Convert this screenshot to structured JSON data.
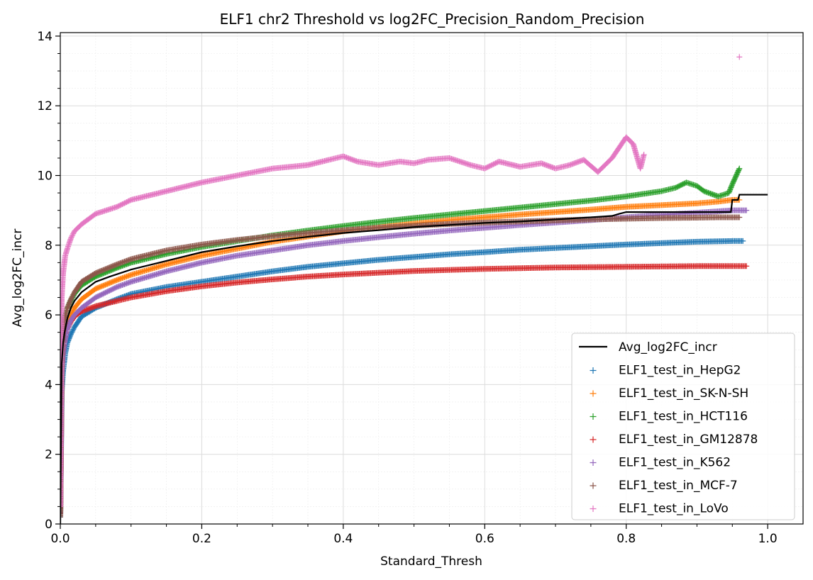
{
  "chart_data": {
    "type": "scatter",
    "title": "ELF1 chr2 Threshold vs log2FC_Precision_Random_Precision",
    "xlabel": "Standard_Thresh",
    "ylabel": "Avg_log2FC_incr",
    "xlim": [
      0,
      1.05
    ],
    "ylim": [
      0,
      14.1
    ],
    "xticks": [
      "0.0",
      "0.2",
      "0.4",
      "0.6",
      "0.8",
      "1.0"
    ],
    "yticks": [
      "0",
      "2",
      "4",
      "6",
      "8",
      "10",
      "12",
      "14"
    ],
    "grid": "major and minor",
    "legend_position": "lower right",
    "series": [
      {
        "name": "Avg_log2FC_incr",
        "kind": "line",
        "color": "#000000",
        "x": [
          0.0,
          0.002,
          0.004,
          0.006,
          0.01,
          0.015,
          0.02,
          0.03,
          0.04,
          0.05,
          0.07,
          0.1,
          0.15,
          0.2,
          0.25,
          0.3,
          0.35,
          0.4,
          0.45,
          0.5,
          0.55,
          0.6,
          0.65,
          0.7,
          0.75,
          0.78,
          0.79,
          0.8,
          0.85,
          0.9,
          0.948,
          0.95,
          0.958,
          0.96,
          1.0
        ],
        "y": [
          0.0,
          4.6,
          5.2,
          5.5,
          5.9,
          6.2,
          6.4,
          6.65,
          6.8,
          6.95,
          7.1,
          7.3,
          7.55,
          7.8,
          7.97,
          8.12,
          8.24,
          8.35,
          8.43,
          8.52,
          8.58,
          8.64,
          8.68,
          8.74,
          8.8,
          8.84,
          8.9,
          8.95,
          8.95,
          8.95,
          8.95,
          9.3,
          9.3,
          9.45,
          9.45
        ]
      },
      {
        "name": "ELF1_test_in_HepG2",
        "kind": "scatter",
        "marker": "+",
        "color": "#1f77b4",
        "x": [
          0.0,
          0.002,
          0.004,
          0.007,
          0.01,
          0.015,
          0.02,
          0.03,
          0.05,
          0.08,
          0.1,
          0.15,
          0.2,
          0.25,
          0.3,
          0.35,
          0.4,
          0.45,
          0.5,
          0.55,
          0.6,
          0.65,
          0.7,
          0.75,
          0.8,
          0.85,
          0.9,
          0.95,
          0.96,
          0.965
        ],
        "y": [
          0.2,
          3.8,
          4.4,
          4.9,
          5.2,
          5.45,
          5.65,
          5.95,
          6.2,
          6.45,
          6.6,
          6.8,
          6.95,
          7.1,
          7.25,
          7.38,
          7.48,
          7.58,
          7.66,
          7.74,
          7.8,
          7.87,
          7.92,
          7.97,
          8.02,
          8.06,
          8.1,
          8.12,
          8.12,
          8.12
        ]
      },
      {
        "name": "ELF1_test_in_SK-N-SH",
        "kind": "scatter",
        "marker": "+",
        "color": "#ff7f0e",
        "x": [
          0.0,
          0.002,
          0.004,
          0.007,
          0.01,
          0.015,
          0.02,
          0.03,
          0.05,
          0.08,
          0.1,
          0.15,
          0.2,
          0.25,
          0.3,
          0.35,
          0.4,
          0.45,
          0.5,
          0.55,
          0.6,
          0.65,
          0.7,
          0.75,
          0.8,
          0.85,
          0.9,
          0.93,
          0.95,
          0.96
        ],
        "y": [
          0.3,
          4.5,
          5.1,
          5.5,
          5.8,
          6.0,
          6.2,
          6.45,
          6.75,
          7.0,
          7.15,
          7.45,
          7.7,
          7.9,
          8.1,
          8.25,
          8.4,
          8.52,
          8.62,
          8.72,
          8.8,
          8.88,
          8.95,
          9.02,
          9.1,
          9.15,
          9.2,
          9.25,
          9.3,
          9.3
        ]
      },
      {
        "name": "ELF1_test_in_HCT116",
        "kind": "scatter",
        "marker": "+",
        "color": "#2ca02c",
        "x": [
          0.0,
          0.002,
          0.004,
          0.007,
          0.01,
          0.015,
          0.02,
          0.03,
          0.05,
          0.08,
          0.1,
          0.15,
          0.2,
          0.25,
          0.3,
          0.35,
          0.4,
          0.45,
          0.5,
          0.55,
          0.6,
          0.65,
          0.7,
          0.75,
          0.8,
          0.85,
          0.87,
          0.885,
          0.9,
          0.91,
          0.93,
          0.945,
          0.95,
          0.96
        ],
        "y": [
          0.3,
          5.0,
          5.6,
          6.0,
          6.2,
          6.4,
          6.6,
          6.85,
          7.1,
          7.35,
          7.5,
          7.75,
          7.95,
          8.12,
          8.28,
          8.42,
          8.55,
          8.67,
          8.78,
          8.88,
          8.98,
          9.08,
          9.18,
          9.28,
          9.4,
          9.55,
          9.65,
          9.8,
          9.7,
          9.55,
          9.4,
          9.5,
          9.75,
          10.2
        ]
      },
      {
        "name": "ELF1_test_in_GM12878",
        "kind": "scatter",
        "marker": "+",
        "color": "#d62728",
        "x": [
          0.0,
          0.002,
          0.004,
          0.007,
          0.01,
          0.015,
          0.02,
          0.03,
          0.05,
          0.08,
          0.1,
          0.15,
          0.2,
          0.25,
          0.3,
          0.35,
          0.4,
          0.45,
          0.5,
          0.55,
          0.6,
          0.65,
          0.7,
          0.75,
          0.8,
          0.85,
          0.9,
          0.95,
          0.965,
          0.97
        ],
        "y": [
          0.3,
          4.4,
          5.0,
          5.4,
          5.6,
          5.8,
          5.95,
          6.1,
          6.25,
          6.4,
          6.5,
          6.68,
          6.82,
          6.93,
          7.02,
          7.1,
          7.16,
          7.21,
          7.26,
          7.29,
          7.32,
          7.34,
          7.36,
          7.37,
          7.38,
          7.39,
          7.4,
          7.4,
          7.4,
          7.4
        ]
      },
      {
        "name": "ELF1_test_in_K562",
        "kind": "scatter",
        "marker": "+",
        "color": "#9467bd",
        "x": [
          0.0,
          0.002,
          0.004,
          0.007,
          0.01,
          0.015,
          0.02,
          0.03,
          0.05,
          0.08,
          0.1,
          0.15,
          0.2,
          0.25,
          0.3,
          0.35,
          0.4,
          0.45,
          0.5,
          0.55,
          0.6,
          0.65,
          0.7,
          0.75,
          0.8,
          0.85,
          0.9,
          0.95,
          0.96,
          0.97
        ],
        "y": [
          0.3,
          4.3,
          4.9,
          5.3,
          5.6,
          5.85,
          6.0,
          6.2,
          6.5,
          6.8,
          6.95,
          7.25,
          7.5,
          7.7,
          7.85,
          8.0,
          8.12,
          8.23,
          8.33,
          8.42,
          8.5,
          8.58,
          8.65,
          8.72,
          8.8,
          8.87,
          8.93,
          9.0,
          9.0,
          9.0
        ]
      },
      {
        "name": "ELF1_test_in_MCF-7",
        "kind": "scatter",
        "marker": "+",
        "color": "#8c564b",
        "x": [
          0.0,
          0.002,
          0.004,
          0.007,
          0.01,
          0.015,
          0.02,
          0.03,
          0.05,
          0.08,
          0.1,
          0.15,
          0.2,
          0.25,
          0.3,
          0.35,
          0.4,
          0.45,
          0.5,
          0.55,
          0.6,
          0.65,
          0.7,
          0.75,
          0.8,
          0.85,
          0.9,
          0.93,
          0.95,
          0.96
        ],
        "y": [
          0.2,
          4.8,
          5.5,
          5.9,
          6.2,
          6.45,
          6.65,
          6.95,
          7.2,
          7.45,
          7.6,
          7.85,
          8.02,
          8.15,
          8.26,
          8.35,
          8.43,
          8.5,
          8.56,
          8.61,
          8.65,
          8.68,
          8.71,
          8.74,
          8.76,
          8.78,
          8.79,
          8.8,
          8.8,
          8.8
        ]
      },
      {
        "name": "ELF1_test_in_LoVo",
        "kind": "scatter",
        "marker": "+",
        "color": "#e377c2",
        "x": [
          0.0,
          0.002,
          0.004,
          0.007,
          0.01,
          0.015,
          0.02,
          0.03,
          0.05,
          0.08,
          0.1,
          0.15,
          0.2,
          0.25,
          0.3,
          0.35,
          0.38,
          0.4,
          0.42,
          0.45,
          0.48,
          0.5,
          0.52,
          0.55,
          0.58,
          0.6,
          0.62,
          0.65,
          0.68,
          0.7,
          0.72,
          0.74,
          0.76,
          0.78,
          0.79,
          0.8,
          0.81,
          0.82,
          0.825,
          0.96
        ],
        "y": [
          0.5,
          6.5,
          7.2,
          7.7,
          7.9,
          8.2,
          8.4,
          8.6,
          8.9,
          9.1,
          9.3,
          9.55,
          9.8,
          10.0,
          10.2,
          10.3,
          10.45,
          10.55,
          10.4,
          10.3,
          10.4,
          10.35,
          10.45,
          10.5,
          10.3,
          10.2,
          10.4,
          10.25,
          10.35,
          10.2,
          10.3,
          10.45,
          10.1,
          10.5,
          10.8,
          11.1,
          10.9,
          10.2,
          10.6,
          13.4
        ]
      }
    ]
  }
}
